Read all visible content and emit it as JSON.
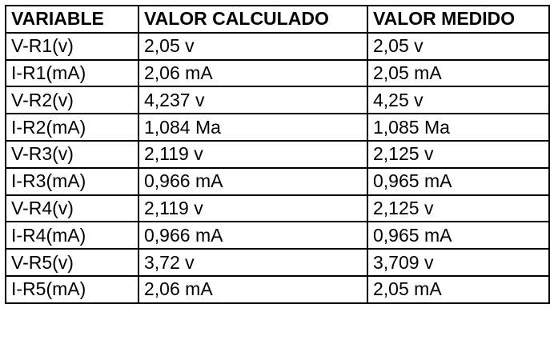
{
  "table": {
    "headers": [
      "VARIABLE",
      "VALOR CALCULADO",
      "VALOR MEDIDO"
    ],
    "rows": [
      [
        "V-R1(v)",
        "2,05 v",
        "2,05 v"
      ],
      [
        "I-R1(mA)",
        "2,06 mA",
        "2,05 mA"
      ],
      [
        "V-R2(v)",
        "4,237 v",
        "4,25 v"
      ],
      [
        "I-R2(mA)",
        "1,084 Ma",
        "1,085 Ma"
      ],
      [
        "V-R3(v)",
        "2,119 v",
        "2,125 v"
      ],
      [
        "I-R3(mA)",
        "0,966 mA",
        "0,965 mA"
      ],
      [
        "V-R4(v)",
        "2,119 v",
        "2,125 v"
      ],
      [
        "I-R4(mA)",
        "0,966 mA",
        "0,965 mA"
      ],
      [
        "V-R5(v)",
        "3,72 v",
        "3,709 v"
      ],
      [
        "I-R5(mA)",
        "2,06 mA",
        "2,05 mA"
      ]
    ]
  }
}
